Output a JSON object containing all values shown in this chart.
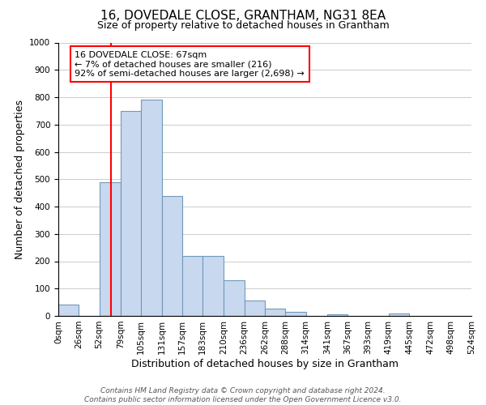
{
  "title": "16, DOVEDALE CLOSE, GRANTHAM, NG31 8EA",
  "subtitle": "Size of property relative to detached houses in Grantham",
  "xlabel": "Distribution of detached houses by size in Grantham",
  "ylabel": "Number of detached properties",
  "bin_edges": [
    0,
    26,
    52,
    79,
    105,
    131,
    157,
    183,
    210,
    236,
    262,
    288,
    314,
    341,
    367,
    393,
    419,
    445,
    472,
    498,
    524
  ],
  "counts": [
    42,
    0,
    490,
    750,
    790,
    440,
    220,
    220,
    130,
    55,
    28,
    15,
    0,
    6,
    0,
    0,
    8,
    0,
    0,
    0
  ],
  "property_size": 67,
  "annotation_line1": "16 DOVEDALE CLOSE: 67sqm",
  "annotation_line2": "← 7% of detached houses are smaller (216)",
  "annotation_line3": "92% of semi-detached houses are larger (2,698) →",
  "bar_fill_color": "#c8d8ee",
  "bar_edge_color": "#7099bb",
  "vline_color": "red",
  "box_edge_color": "red",
  "ylim": [
    0,
    1000
  ],
  "xlim": [
    0,
    524
  ],
  "yticks": [
    0,
    100,
    200,
    300,
    400,
    500,
    600,
    700,
    800,
    900,
    1000
  ],
  "footer1": "Contains HM Land Registry data © Crown copyright and database right 2024.",
  "footer2": "Contains public sector information licensed under the Open Government Licence v3.0.",
  "title_fontsize": 11,
  "subtitle_fontsize": 9,
  "ylabel_fontsize": 9,
  "xlabel_fontsize": 9,
  "tick_fontsize": 7.5,
  "annotation_fontsize": 8,
  "footer_fontsize": 6.5
}
